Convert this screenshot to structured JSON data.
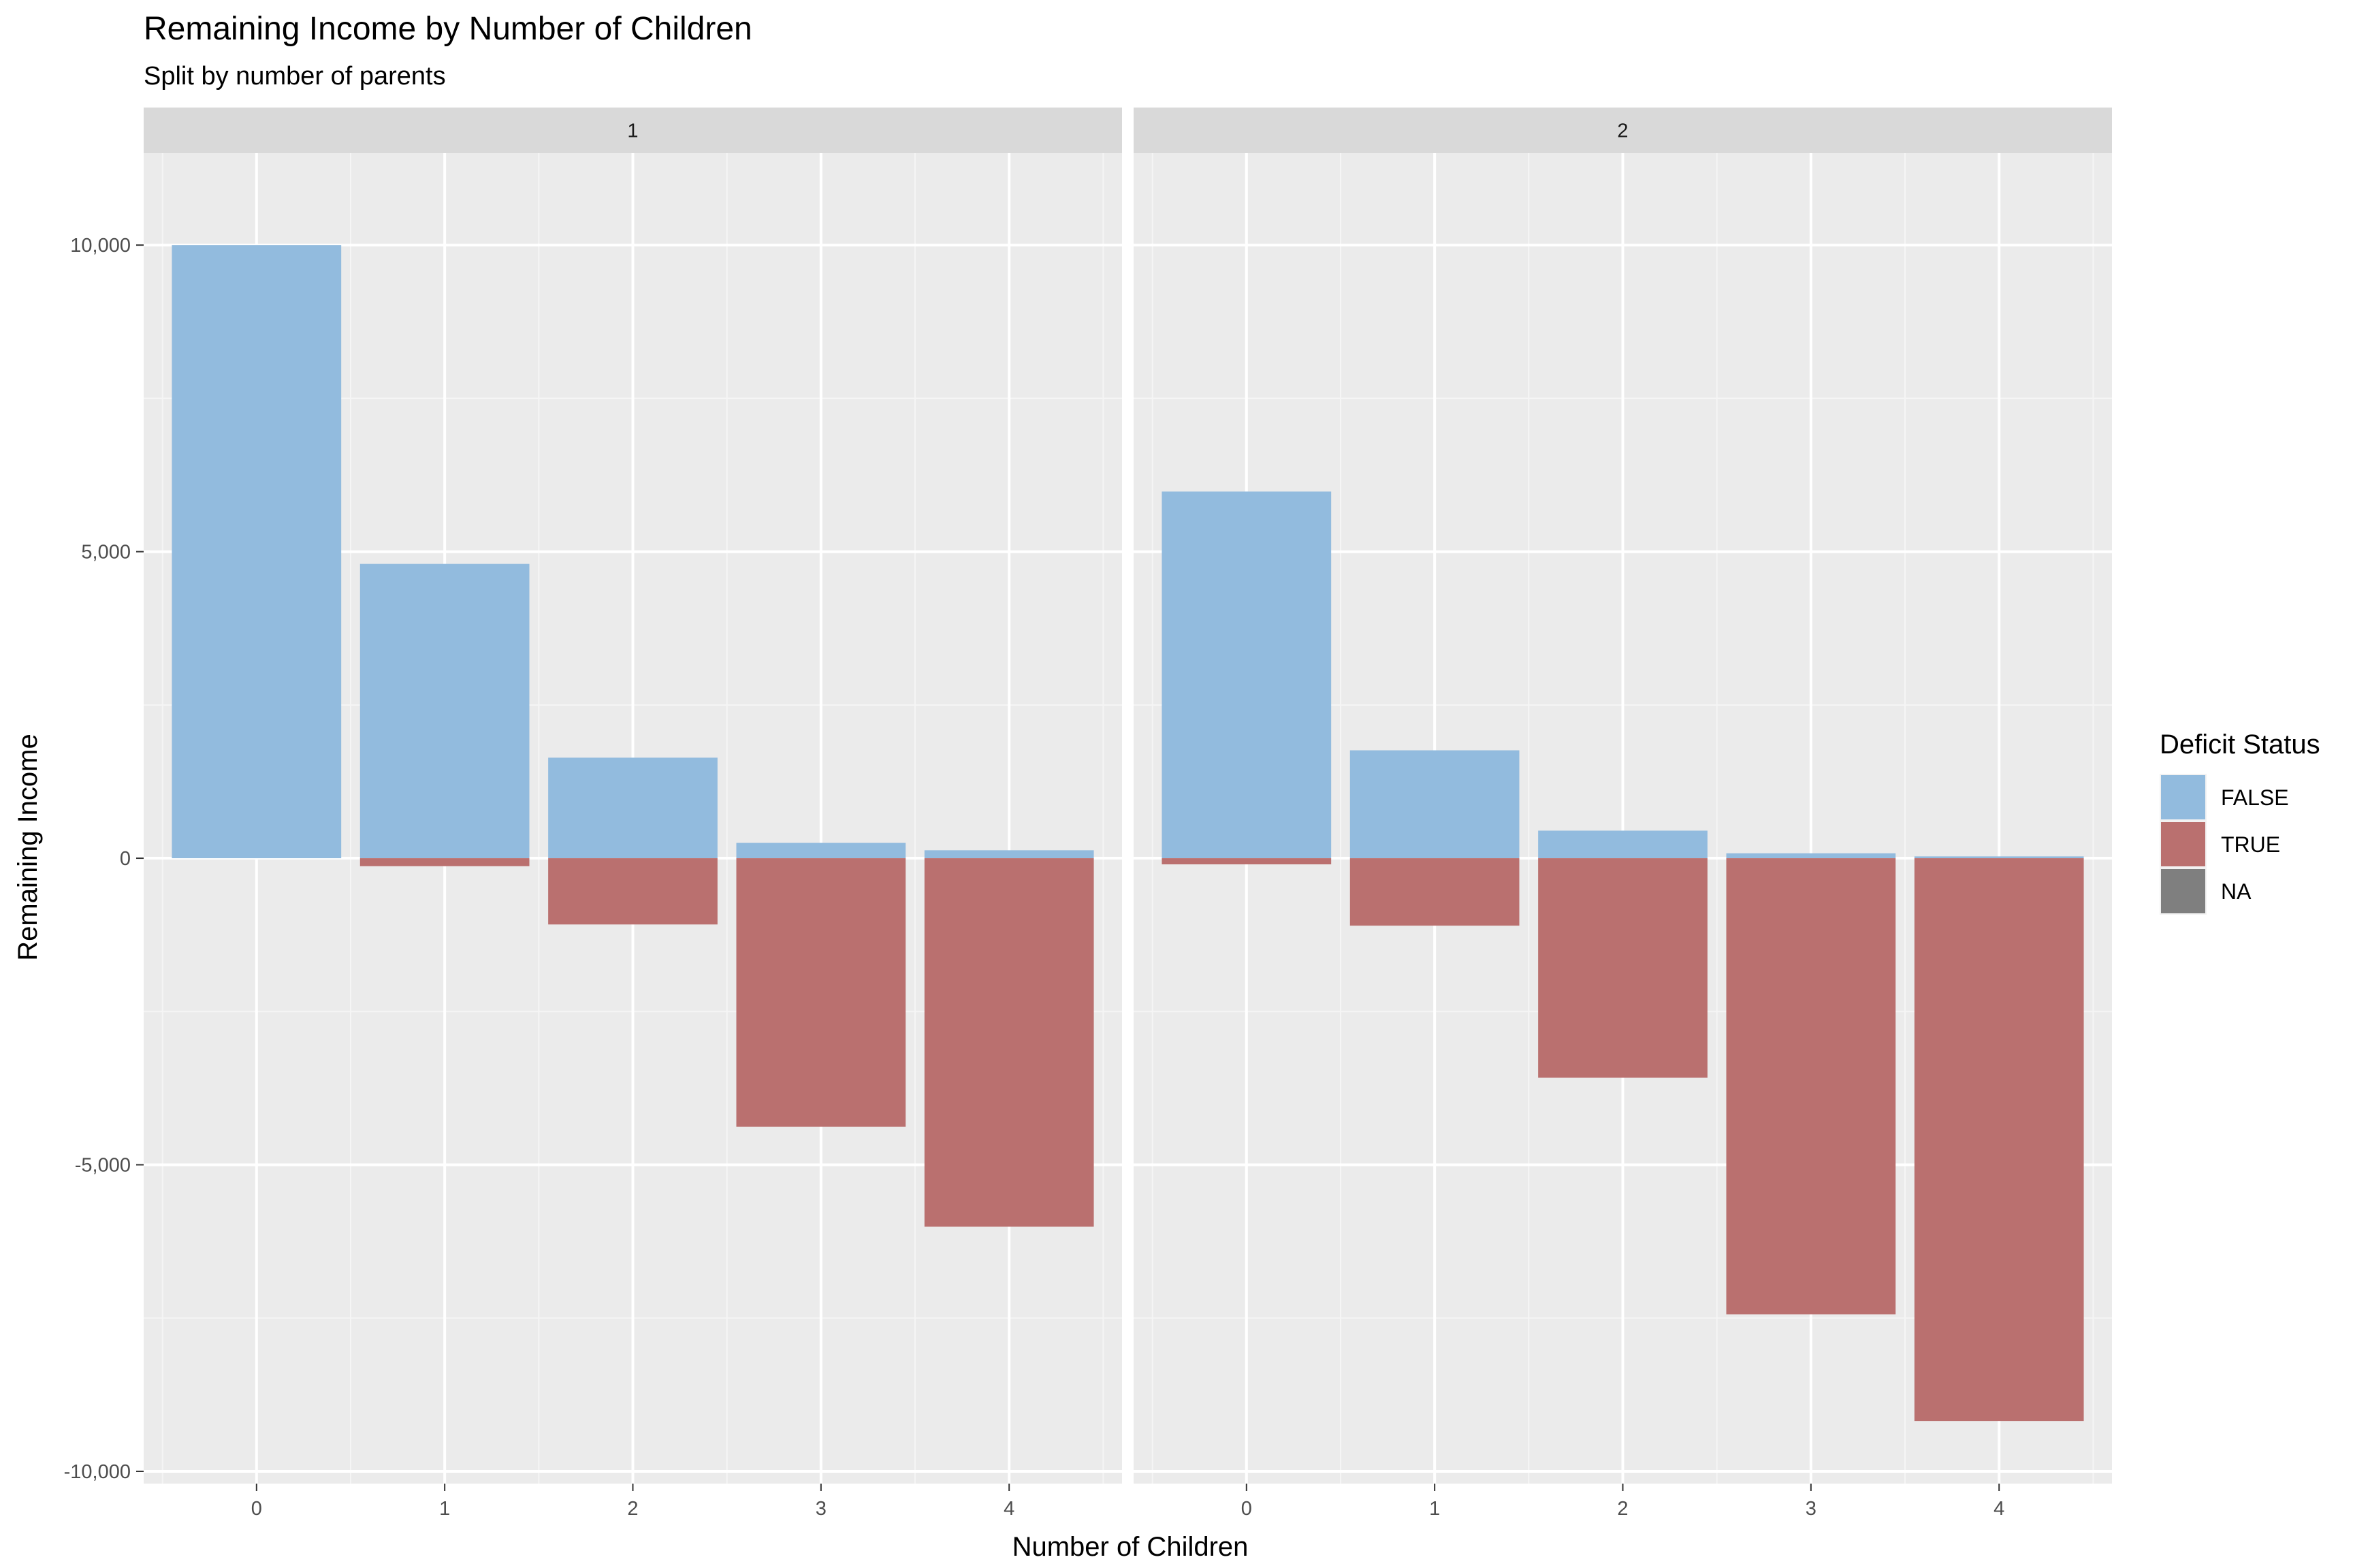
{
  "chart_data": {
    "type": "bar",
    "title": "Remaining Income by Number of Children",
    "subtitle": "Split by number of parents",
    "xlabel": "Number of Children",
    "ylabel": "Remaining Income",
    "categories": [
      "0",
      "1",
      "2",
      "3",
      "4"
    ],
    "ylim": [
      -10200,
      11500
    ],
    "y_ticks": [
      10000,
      5000,
      0,
      -5000,
      -10000
    ],
    "y_tick_labels": [
      "10,000",
      "5,000",
      "0",
      "-5,000",
      "-10,000"
    ],
    "grid": true,
    "facets": [
      {
        "label": "1",
        "series": [
          {
            "name": "FALSE",
            "values": [
              10000,
              4800,
              1640,
              250,
              130
            ]
          },
          {
            "name": "TRUE",
            "values": [
              0,
              -130,
              -1080,
              -4380,
              -6010
            ]
          }
        ]
      },
      {
        "label": "2",
        "series": [
          {
            "name": "FALSE",
            "values": [
              5980,
              1760,
              450,
              80,
              30
            ]
          },
          {
            "name": "TRUE",
            "values": [
              -100,
              -1100,
              -3580,
              -7440,
              -9180
            ]
          }
        ]
      }
    ],
    "legend": {
      "title": "Deficit Status",
      "position": "right",
      "entries": [
        {
          "label": "FALSE",
          "color": "#92BBDE"
        },
        {
          "label": "TRUE",
          "color": "#BA706F"
        },
        {
          "label": "NA",
          "color": "#7F7F7F"
        }
      ]
    },
    "colors": {
      "panel_background": "#EBEBEB",
      "strip_background": "#D9D9D9",
      "grid_major": "#FFFFFF",
      "grid_minor": "#F5F5F5"
    }
  }
}
